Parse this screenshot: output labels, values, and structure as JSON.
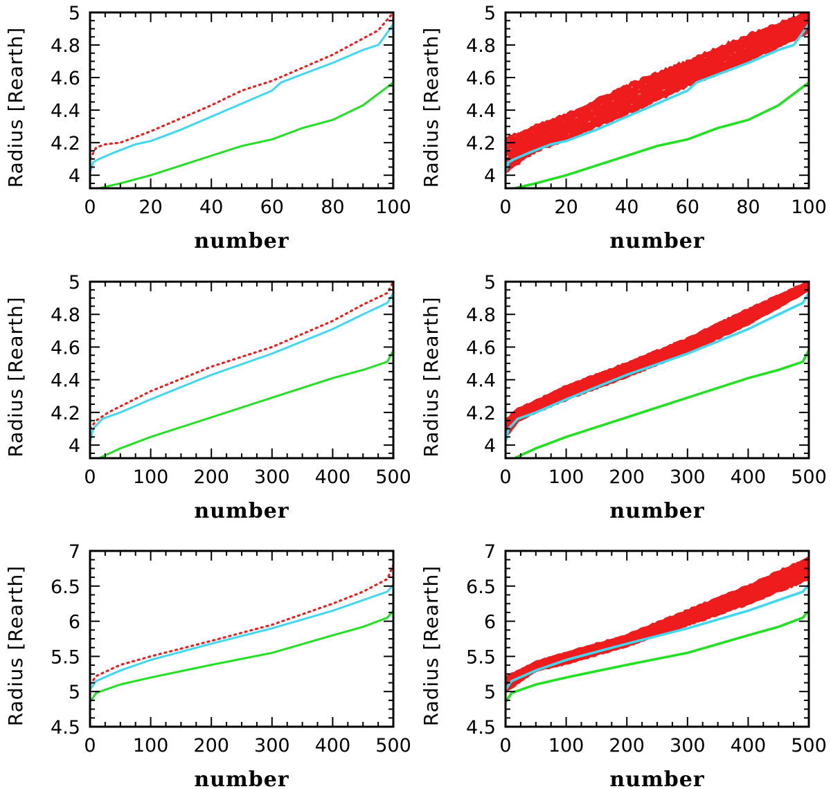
{
  "colors": {
    "measured": "#ee1c1c",
    "model_a": "#3fd8f0",
    "model_b": "#22e022",
    "axis": "#000000"
  },
  "chart_data": [
    {
      "type": "line",
      "row": 1,
      "col": 1,
      "xlabel": "number",
      "ylabel": "Radius [Rearth]",
      "xlim": [
        0,
        100
      ],
      "ylim": [
        3.92,
        5.0
      ],
      "xticks": [
        "0",
        "20",
        "40",
        "60",
        "80",
        "100"
      ],
      "xtick_values": [
        0,
        20,
        40,
        60,
        80,
        100
      ],
      "yticks": [
        "4",
        "4.2",
        "4.4",
        "4.6",
        "4.8",
        "5"
      ],
      "ytick_values": [
        4,
        4.2,
        4.4,
        4.6,
        4.8,
        5
      ],
      "series": [
        {
          "name": "red-dotted",
          "style": "dotted",
          "x": [
            0,
            2,
            5,
            10,
            20,
            30,
            40,
            50,
            60,
            70,
            80,
            90,
            95,
            100
          ],
          "y": [
            4.1,
            4.17,
            4.19,
            4.2,
            4.27,
            4.35,
            4.43,
            4.52,
            4.58,
            4.66,
            4.74,
            4.84,
            4.89,
            5.0
          ]
        },
        {
          "name": "cyan",
          "style": "solid",
          "x": [
            0,
            1,
            3,
            8,
            15,
            20,
            30,
            40,
            50,
            60,
            63,
            70,
            80,
            90,
            95,
            97,
            100
          ],
          "y": [
            4.02,
            4.08,
            4.1,
            4.14,
            4.19,
            4.21,
            4.28,
            4.36,
            4.44,
            4.52,
            4.57,
            4.62,
            4.69,
            4.77,
            4.8,
            4.85,
            4.93
          ]
        },
        {
          "name": "green",
          "style": "solid",
          "x": [
            3,
            10,
            20,
            30,
            40,
            50,
            60,
            70,
            80,
            90,
            95,
            100
          ],
          "y": [
            3.92,
            3.95,
            4.0,
            4.06,
            4.12,
            4.18,
            4.22,
            4.29,
            4.34,
            4.43,
            4.5,
            4.57
          ]
        }
      ]
    },
    {
      "type": "line",
      "row": 1,
      "col": 2,
      "xlabel": "number",
      "ylabel": "Radius [Rearth]",
      "xlim": [
        0,
        100
      ],
      "ylim": [
        3.92,
        5.0
      ],
      "xticks": [
        "0",
        "20",
        "40",
        "60",
        "80",
        "100"
      ],
      "xtick_values": [
        0,
        20,
        40,
        60,
        80,
        100
      ],
      "yticks": [
        "4",
        "4.2",
        "4.4",
        "4.6",
        "4.8",
        "5"
      ],
      "ytick_values": [
        4,
        4.2,
        4.4,
        4.6,
        4.8,
        5
      ],
      "band": {
        "name": "red-ensemble",
        "x": [
          0,
          10,
          20,
          40,
          60,
          80,
          100
        ],
        "y_low": [
          4.02,
          4.15,
          4.22,
          4.38,
          4.55,
          4.7,
          4.88
        ],
        "y_high": [
          4.22,
          4.3,
          4.37,
          4.55,
          4.7,
          4.86,
          5.0
        ],
        "n_realizations": 22
      },
      "series": [
        {
          "name": "cyan",
          "style": "solid",
          "x": [
            0,
            1,
            3,
            8,
            15,
            20,
            30,
            40,
            50,
            60,
            63,
            70,
            80,
            90,
            95,
            97,
            100
          ],
          "y": [
            4.02,
            4.08,
            4.1,
            4.14,
            4.19,
            4.21,
            4.28,
            4.36,
            4.44,
            4.52,
            4.57,
            4.62,
            4.69,
            4.77,
            4.8,
            4.85,
            4.93
          ]
        },
        {
          "name": "green",
          "style": "solid",
          "x": [
            3,
            10,
            20,
            30,
            40,
            50,
            60,
            70,
            80,
            90,
            95,
            100
          ],
          "y": [
            3.92,
            3.95,
            4.0,
            4.06,
            4.12,
            4.18,
            4.22,
            4.29,
            4.34,
            4.43,
            4.5,
            4.57
          ]
        }
      ]
    },
    {
      "type": "line",
      "row": 2,
      "col": 1,
      "xlabel": "number",
      "ylabel": "Radius [Rearth]",
      "xlim": [
        0,
        500
      ],
      "ylim": [
        3.92,
        5.0
      ],
      "xticks": [
        "0",
        "100",
        "200",
        "300",
        "400",
        "500"
      ],
      "xtick_values": [
        0,
        100,
        200,
        300,
        400,
        500
      ],
      "yticks": [
        "4",
        "4.2",
        "4.4",
        "4.6",
        "4.8",
        "5"
      ],
      "ytick_values": [
        4,
        4.2,
        4.4,
        4.6,
        4.8,
        5
      ],
      "series": [
        {
          "name": "red-dotted",
          "style": "dotted",
          "x": [
            0,
            10,
            30,
            100,
            200,
            300,
            400,
            450,
            490,
            500
          ],
          "y": [
            4.1,
            4.15,
            4.2,
            4.33,
            4.48,
            4.6,
            4.76,
            4.86,
            4.93,
            5.0
          ]
        },
        {
          "name": "cyan",
          "style": "solid",
          "x": [
            0,
            5,
            20,
            50,
            100,
            200,
            300,
            400,
            450,
            490,
            500
          ],
          "y": [
            4.02,
            4.1,
            4.16,
            4.2,
            4.28,
            4.43,
            4.56,
            4.71,
            4.8,
            4.87,
            4.93
          ]
        },
        {
          "name": "green",
          "style": "solid",
          "x": [
            15,
            50,
            100,
            200,
            300,
            400,
            450,
            490,
            500
          ],
          "y": [
            3.92,
            3.98,
            4.05,
            4.17,
            4.29,
            4.41,
            4.46,
            4.51,
            4.58
          ]
        }
      ]
    },
    {
      "type": "line",
      "row": 2,
      "col": 2,
      "xlabel": "number",
      "ylabel": "Radius [Rearth]",
      "xlim": [
        0,
        500
      ],
      "ylim": [
        3.92,
        5.0
      ],
      "xticks": [
        "0",
        "100",
        "200",
        "300",
        "400",
        "500"
      ],
      "xtick_values": [
        0,
        100,
        200,
        300,
        400,
        500
      ],
      "yticks": [
        "4",
        "4.2",
        "4.4",
        "4.6",
        "4.8",
        "5"
      ],
      "ytick_values": [
        4,
        4.2,
        4.4,
        4.6,
        4.8,
        5
      ],
      "band": {
        "name": "red-ensemble",
        "x": [
          0,
          20,
          50,
          100,
          200,
          300,
          400,
          500
        ],
        "y_low": [
          4.05,
          4.15,
          4.2,
          4.28,
          4.42,
          4.57,
          4.74,
          4.95
        ],
        "y_high": [
          4.15,
          4.22,
          4.27,
          4.36,
          4.5,
          4.65,
          4.83,
          5.0
        ],
        "n_realizations": 22
      },
      "series": [
        {
          "name": "cyan",
          "style": "solid",
          "x": [
            0,
            5,
            20,
            50,
            100,
            200,
            300,
            400,
            450,
            490,
            500
          ],
          "y": [
            4.02,
            4.1,
            4.16,
            4.2,
            4.28,
            4.43,
            4.56,
            4.71,
            4.8,
            4.87,
            4.93
          ]
        },
        {
          "name": "green",
          "style": "solid",
          "x": [
            15,
            50,
            100,
            200,
            300,
            400,
            450,
            490,
            500
          ],
          "y": [
            3.92,
            3.98,
            4.05,
            4.17,
            4.29,
            4.41,
            4.46,
            4.51,
            4.58
          ]
        }
      ]
    },
    {
      "type": "line",
      "row": 3,
      "col": 1,
      "xlabel": "number",
      "ylabel": "Radius [Rearth]",
      "xlim": [
        0,
        500
      ],
      "ylim": [
        4.5,
        7.0
      ],
      "xticks": [
        "0",
        "100",
        "200",
        "300",
        "400",
        "500"
      ],
      "xtick_values": [
        0,
        100,
        200,
        300,
        400,
        500
      ],
      "yticks": [
        "4.5",
        "5",
        "5.5",
        "6",
        "6.5",
        "7"
      ],
      "ytick_values": [
        4.5,
        5,
        5.5,
        6,
        6.5,
        7
      ],
      "series": [
        {
          "name": "red-dotted",
          "style": "dotted",
          "x": [
            0,
            10,
            50,
            100,
            200,
            300,
            400,
            450,
            490,
            500
          ],
          "y": [
            5.1,
            5.22,
            5.38,
            5.5,
            5.72,
            5.95,
            6.25,
            6.42,
            6.6,
            6.8
          ]
        },
        {
          "name": "cyan",
          "style": "solid",
          "x": [
            0,
            10,
            50,
            100,
            200,
            300,
            400,
            450,
            490,
            500
          ],
          "y": [
            5.03,
            5.15,
            5.3,
            5.45,
            5.68,
            5.9,
            6.15,
            6.3,
            6.42,
            6.52
          ]
        },
        {
          "name": "green",
          "style": "solid",
          "x": [
            0,
            10,
            50,
            100,
            200,
            300,
            400,
            450,
            490,
            500
          ],
          "y": [
            4.85,
            4.98,
            5.1,
            5.2,
            5.38,
            5.55,
            5.8,
            5.92,
            6.05,
            6.15
          ]
        }
      ]
    },
    {
      "type": "line",
      "row": 3,
      "col": 2,
      "xlabel": "number",
      "ylabel": "Radius [Rearth]",
      "xlim": [
        0,
        500
      ],
      "ylim": [
        4.5,
        7.0
      ],
      "xticks": [
        "0",
        "100",
        "200",
        "300",
        "400",
        "500"
      ],
      "xtick_values": [
        0,
        100,
        200,
        300,
        400,
        500
      ],
      "yticks": [
        "4.5",
        "5",
        "5.5",
        "6",
        "6.5",
        "7"
      ],
      "ytick_values": [
        4.5,
        5,
        5.5,
        6,
        6.5,
        7
      ],
      "band": {
        "name": "red-ensemble",
        "x": [
          0,
          50,
          100,
          200,
          300,
          400,
          500
        ],
        "y_low": [
          5.0,
          5.3,
          5.4,
          5.65,
          5.95,
          6.25,
          6.6
        ],
        "y_high": [
          5.2,
          5.42,
          5.55,
          5.8,
          6.15,
          6.5,
          6.9
        ],
        "n_realizations": 22
      },
      "series": [
        {
          "name": "cyan",
          "style": "solid",
          "x": [
            0,
            10,
            50,
            100,
            200,
            300,
            400,
            450,
            490,
            500
          ],
          "y": [
            5.03,
            5.15,
            5.3,
            5.45,
            5.68,
            5.9,
            6.15,
            6.3,
            6.42,
            6.52
          ]
        },
        {
          "name": "green",
          "style": "solid",
          "x": [
            0,
            10,
            50,
            100,
            200,
            300,
            400,
            450,
            490,
            500
          ],
          "y": [
            4.85,
            4.98,
            5.1,
            5.2,
            5.38,
            5.55,
            5.8,
            5.92,
            6.05,
            6.15
          ]
        }
      ]
    }
  ]
}
